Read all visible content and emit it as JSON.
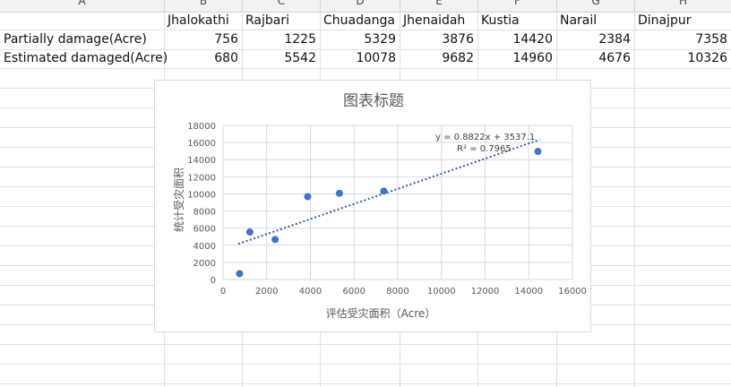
{
  "spreadsheet": {
    "columns": [
      "A",
      "B",
      "C",
      "D",
      "E",
      "F",
      "G",
      "H"
    ],
    "header_row": [
      "",
      "Jhalokathi",
      "Rajbari",
      "Chuadanga",
      "Jhenaidah",
      "Kustia",
      "Narail",
      "Dinajpur"
    ],
    "rows": [
      {
        "label": "Partially damage(Acre)",
        "values": [
          "756",
          "1225",
          "5329",
          "3876",
          "14420",
          "2384",
          "7358"
        ]
      },
      {
        "label": "Estimated damaged(Acre)",
        "values": [
          "680",
          "5542",
          "10078",
          "9682",
          "14960",
          "4676",
          "10326"
        ]
      }
    ]
  },
  "chart": {
    "title": "图表标题",
    "xlabel": "评估受灾面积（Acre）",
    "ylabel": "统计受灾面积",
    "equation": "y = 0.8822x + 3537.1",
    "r2": "R² = 0.7965",
    "point_color": "#4472c4"
  },
  "chart_data": {
    "type": "scatter",
    "title": "图表标题",
    "xlabel": "评估受灾面积（Acre）",
    "ylabel": "统计受灾面积",
    "x": [
      756,
      1225,
      5329,
      3876,
      14420,
      2384,
      7358
    ],
    "y": [
      680,
      5542,
      10078,
      9682,
      14960,
      4676,
      10326
    ],
    "xlim": [
      0,
      16000
    ],
    "ylim": [
      0,
      18000
    ],
    "x_ticks": [
      "0",
      "2000",
      "4000",
      "6000",
      "8000",
      "10000",
      "12000",
      "14000",
      "16000"
    ],
    "y_ticks": [
      "0",
      "2000",
      "4000",
      "6000",
      "8000",
      "10000",
      "12000",
      "14000",
      "16000",
      "18000"
    ],
    "trendline": {
      "slope": 0.8822,
      "intercept": 3537.1,
      "x_range": [
        700,
        14500
      ]
    },
    "grid": true
  }
}
